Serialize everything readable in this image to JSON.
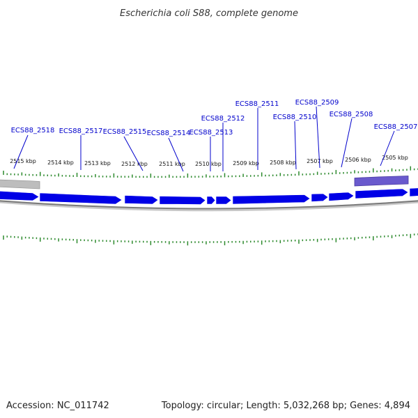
{
  "title": "Escherichia coli S88, complete genome",
  "footer": {
    "accession": "Accession: NC_011742",
    "summary": "Topology: circular; Length: 5,032,268 bp; Genes: 4,894"
  },
  "colors": {
    "gene_fill": "#0000e6",
    "gene_label": "#0000cc",
    "tick": "#2d8a2d",
    "backbone": "#808080",
    "highlight": "#6a5acd",
    "grey_segment": "#bdbdbd"
  },
  "kbp_labels": [
    "2515 kbp",
    "2514 kbp",
    "2513 kbp",
    "2512 kbp",
    "2511 kbp",
    "2510 kbp",
    "2509 kbp",
    "2508 kbp",
    "2507 kbp",
    "2506 kbp",
    "2505 kbp"
  ],
  "genes": [
    {
      "label": "ECS88_2518"
    },
    {
      "label": "ECS88_2517"
    },
    {
      "label": "ECS88_2515"
    },
    {
      "label": "ECS88_2514"
    },
    {
      "label": "ECS88_2513"
    },
    {
      "label": "ECS88_2512"
    },
    {
      "label": "ECS88_2511"
    },
    {
      "label": "ECS88_2510"
    },
    {
      "label": "ECS88_2509"
    },
    {
      "label": "ECS88_2508"
    },
    {
      "label": "ECS88_2507"
    }
  ]
}
